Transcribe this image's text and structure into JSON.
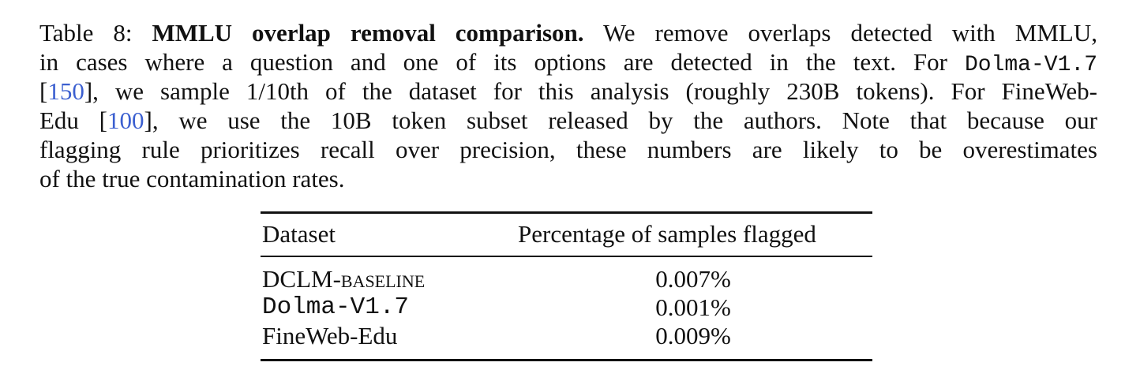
{
  "caption": {
    "lines": [
      [
        "Table 8:",
        "MMLU overlap removal comparison.",
        "We remove overlaps detected with MMLU,"
      ],
      [
        "in cases where a question and one of its options are detected in the text. For",
        "Dolma-V1.7"
      ],
      [
        "[",
        "150",
        "], we sample 1/10th of the dataset for this analysis (roughly 230B tokens). For FineWeb-"
      ],
      [
        "Edu [",
        "100",
        "], we use the 10B token subset released by the authors. Note that because our"
      ],
      [
        "flagging rule prioritizes recall over precision, these numbers are likely to be overestimates"
      ],
      [
        "of the true contamination rates."
      ]
    ]
  },
  "table": {
    "header": [
      "Dataset",
      "Percentage of samples flagged"
    ],
    "rows": [
      [
        "DCLM-baseline",
        "0.007%"
      ],
      [
        "Dolma-V1.7",
        "0.001%"
      ],
      [
        "FineWeb-Edu",
        "0.009%"
      ]
    ]
  }
}
